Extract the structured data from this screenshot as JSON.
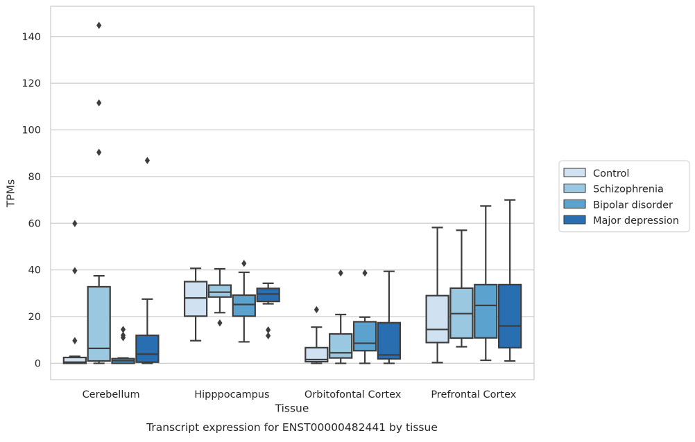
{
  "chart_data": {
    "type": "box",
    "caption": "Transcript expression for ENST00000482441 by tissue",
    "xlabel": "Tissue",
    "ylabel": "TPMs",
    "ylim": [
      -7,
      153
    ],
    "yticks": [
      0,
      20,
      40,
      60,
      80,
      100,
      120,
      140
    ],
    "grid": true,
    "legend_position": "right",
    "categories": [
      "Cerebellum",
      "Hipppocampus",
      "Orbitofontal Cortex",
      "Prefrontal Cortex"
    ],
    "series": [
      {
        "name": "Control",
        "color": "#d0e1f2",
        "boxes": [
          {
            "whisker_low": 0,
            "q1": 0,
            "median": 0.5,
            "q3": 2.5,
            "whisker_high": 3,
            "outliers": [
              9.7,
              39.7,
              59.9
            ]
          },
          {
            "whisker_low": 9.7,
            "q1": 20.2,
            "median": 28,
            "q3": 35,
            "whisker_high": 40.7,
            "outliers": []
          },
          {
            "whisker_low": 0,
            "q1": 0.7,
            "median": 1.6,
            "q3": 6.7,
            "whisker_high": 15.5,
            "outliers": [
              23
            ]
          },
          {
            "whisker_low": 0.3,
            "q1": 8.9,
            "median": 14.5,
            "q3": 29,
            "whisker_high": 58.2,
            "outliers": []
          }
        ]
      },
      {
        "name": "Schizophrenia",
        "color": "#9ac8e0",
        "boxes": [
          {
            "whisker_low": 0,
            "q1": 1,
            "median": 6.4,
            "q3": 32.8,
            "whisker_high": 37.5,
            "outliers": [
              90.4,
              111.6,
              144.8
            ]
          },
          {
            "whisker_low": 21.7,
            "q1": 28.4,
            "median": 30.5,
            "q3": 33.5,
            "whisker_high": 40.5,
            "outliers": [
              17.3
            ]
          },
          {
            "whisker_low": 0,
            "q1": 2.3,
            "median": 4.5,
            "q3": 12.6,
            "whisker_high": 20.9,
            "outliers": [
              38.7
            ]
          },
          {
            "whisker_low": 7.1,
            "q1": 10.8,
            "median": 21.3,
            "q3": 32.2,
            "whisker_high": 57,
            "outliers": []
          }
        ]
      },
      {
        "name": "Bipolar disorder",
        "color": "#5ba2cf",
        "boxes": [
          {
            "whisker_low": 0,
            "q1": 0,
            "median": 1.1,
            "q3": 2,
            "whisker_high": 2.3,
            "outliers": [
              11,
              12,
              14.5
            ]
          },
          {
            "whisker_low": 9.2,
            "q1": 20.2,
            "median": 25.2,
            "q3": 29.2,
            "whisker_high": 39,
            "outliers": [
              42.8
            ]
          },
          {
            "whisker_low": 0,
            "q1": 5.4,
            "median": 8.6,
            "q3": 17.8,
            "whisker_high": 19.8,
            "outliers": [
              38.7
            ]
          },
          {
            "whisker_low": 1.3,
            "q1": 10.9,
            "median": 24.8,
            "q3": 33.7,
            "whisker_high": 67.4,
            "outliers": []
          }
        ]
      },
      {
        "name": "Major depression",
        "color": "#2a6eb2",
        "boxes": [
          {
            "whisker_low": 0,
            "q1": 0.5,
            "median": 3.9,
            "q3": 12,
            "whisker_high": 27.5,
            "outliers": [
              86.9
            ]
          },
          {
            "whisker_low": 25.5,
            "q1": 26.5,
            "median": 29.7,
            "q3": 32.1,
            "whisker_high": 34.3,
            "outliers": [
              11.8,
              14.3
            ]
          },
          {
            "whisker_low": 0,
            "q1": 1.9,
            "median": 3.6,
            "q3": 17.4,
            "whisker_high": 39.4,
            "outliers": []
          },
          {
            "whisker_low": 1,
            "q1": 6.7,
            "median": 16,
            "q3": 33.7,
            "whisker_high": 70,
            "outliers": []
          }
        ]
      }
    ]
  }
}
